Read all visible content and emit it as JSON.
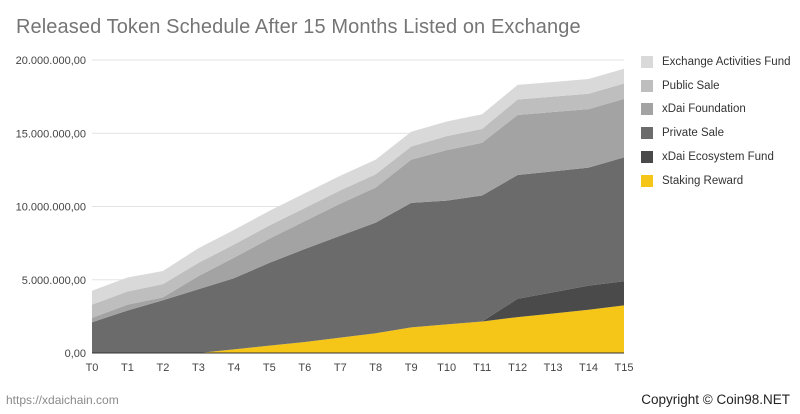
{
  "chart_data": {
    "type": "area",
    "stacked": true,
    "title": "Released Token Schedule After 15 Months Listed on Exchange",
    "categories": [
      "T0",
      "T1",
      "T2",
      "T3",
      "T4",
      "T5",
      "T6",
      "T7",
      "T8",
      "T9",
      "T10",
      "T11",
      "T12",
      "T13",
      "T14",
      "T15"
    ],
    "y_ticks": [
      "0,00",
      "5.000.000,00",
      "10.000.000,00",
      "15.000.000,00",
      "20.000.000,00"
    ],
    "ylim": [
      0,
      20000000
    ],
    "grid": true,
    "legend_position": "right",
    "series": [
      {
        "name": "Staking Reward",
        "color": "#F5C518",
        "values": [
          0,
          0,
          0,
          0,
          250000,
          500000,
          750000,
          1050000,
          1350000,
          1750000,
          1950000,
          2150000,
          2450000,
          2700000,
          2950000,
          3250000
        ]
      },
      {
        "name": "xDai Ecosystem Fund",
        "color": "#4A4A4A",
        "values": [
          0,
          0,
          0,
          0,
          0,
          0,
          0,
          0,
          0,
          0,
          0,
          0,
          1250000,
          1450000,
          1650000,
          1650000
        ]
      },
      {
        "name": "Private Sale",
        "color": "#6B6B6B",
        "values": [
          2100000,
          2900000,
          3600000,
          4350000,
          4850000,
          5650000,
          6350000,
          6950000,
          7550000,
          8500000,
          8450000,
          8600000,
          8450000,
          8250000,
          8050000,
          8450000
        ]
      },
      {
        "name": "xDai Foundation",
        "color": "#A3A3A3",
        "values": [
          300000,
          400000,
          200000,
          900000,
          1400000,
          1650000,
          1900000,
          2200000,
          2400000,
          2950000,
          3450000,
          3600000,
          4100000,
          4050000,
          4000000,
          4000000
        ]
      },
      {
        "name": "Public Sale",
        "color": "#BEBEBE",
        "values": [
          900000,
          900000,
          900000,
          900000,
          900000,
          900000,
          900000,
          900000,
          900000,
          900000,
          950000,
          950000,
          1050000,
          1050000,
          1050000,
          1050000
        ]
      },
      {
        "name": "Exchange Activities Fund",
        "color": "#D9D9D9",
        "values": [
          950000,
          950000,
          900000,
          1000000,
          1000000,
          1000000,
          1000000,
          1000000,
          1000000,
          1000000,
          1000000,
          1000000,
          1000000,
          1000000,
          1000000,
          1000000
        ]
      }
    ]
  },
  "footer": {
    "source": "https://xdaichain.com",
    "copyright": "Copyright © Coin98.NET"
  }
}
